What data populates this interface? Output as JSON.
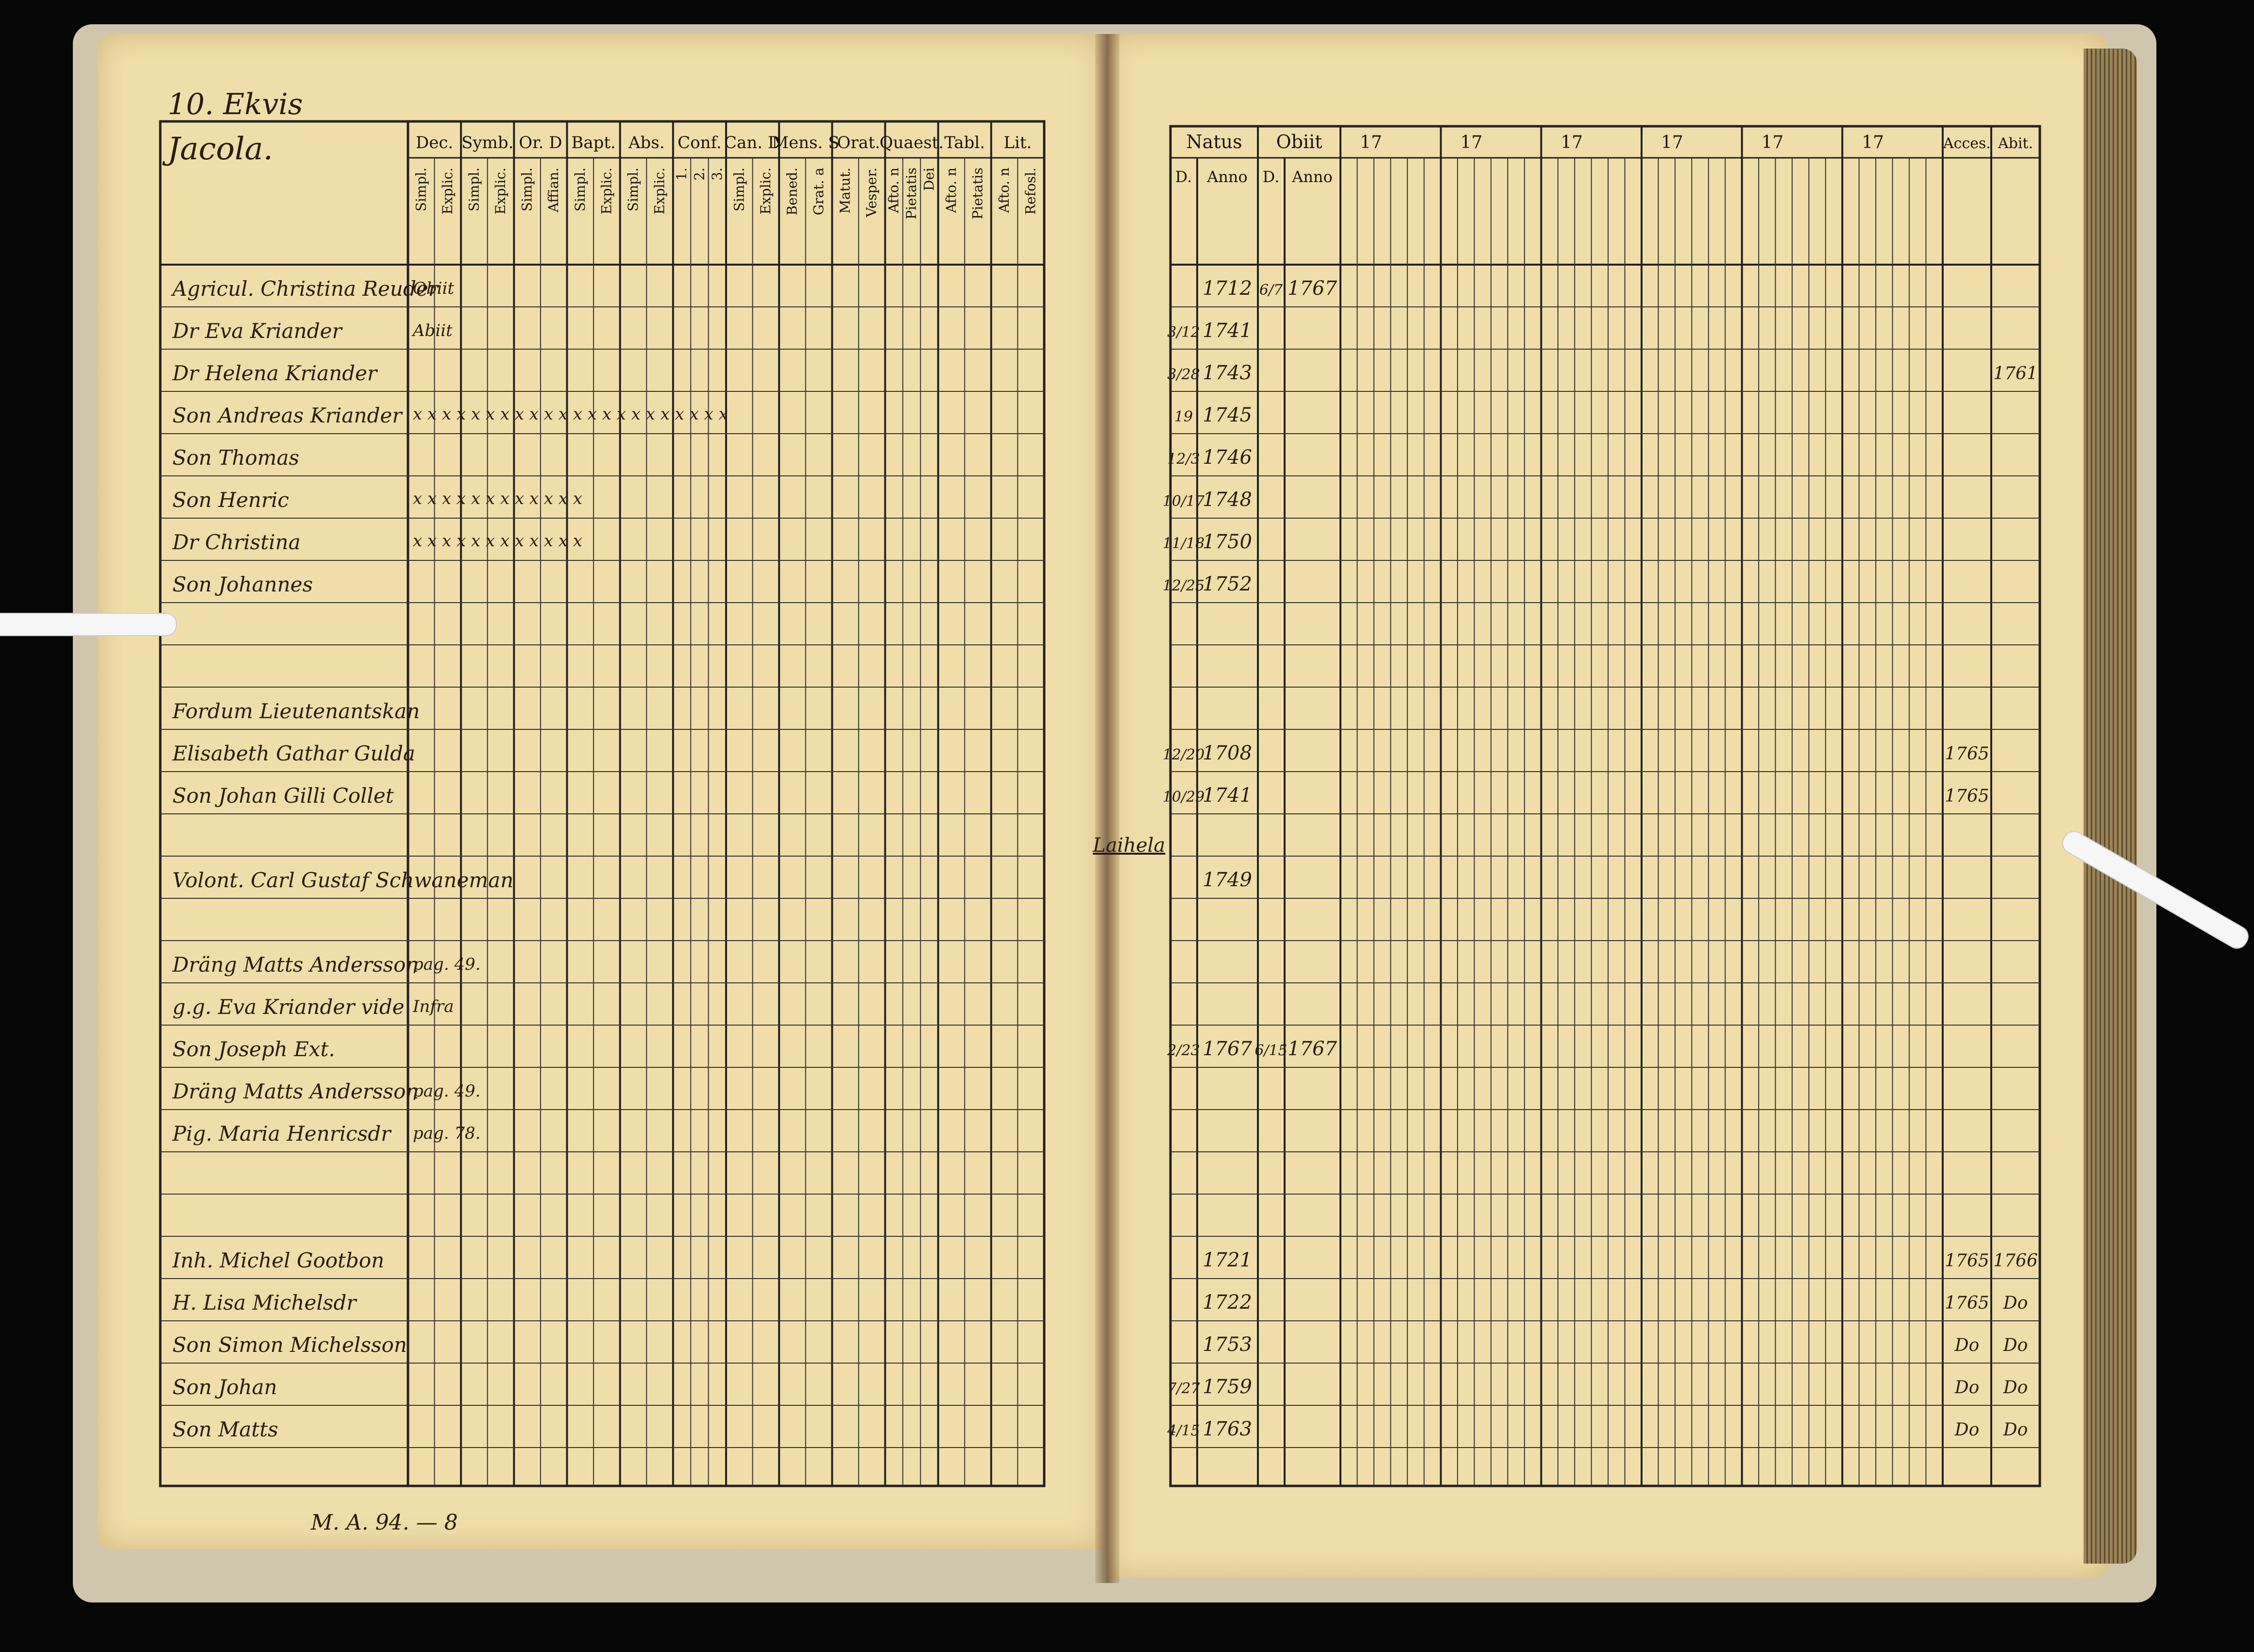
{
  "left_page": {
    "page_heading": "10. Ekvis",
    "farm_name": "Jacola.",
    "column_headers": [
      {
        "top": "Dec.",
        "subs": [
          "Simpl.",
          "Explic."
        ]
      },
      {
        "top": "Symb.",
        "subs": [
          "Simpl.",
          "Explic."
        ]
      },
      {
        "top": "Or. D",
        "subs": [
          "Simpl.",
          "Affian."
        ]
      },
      {
        "top": "Bapt.",
        "subs": [
          "Simpl.",
          "Explic."
        ]
      },
      {
        "top": "Abs.",
        "subs": [
          "Simpl.",
          "Explic."
        ]
      },
      {
        "top": "Conf.",
        "subs": [
          "1.",
          "2.",
          "3."
        ]
      },
      {
        "top": "Can. D",
        "subs": [
          "Simpl.",
          "Explic."
        ]
      },
      {
        "top": "Mens. S",
        "subs": [
          "Bened.",
          "Grat. a"
        ]
      },
      {
        "top": "Orat.",
        "subs": [
          "Matut.",
          "Vesper."
        ]
      },
      {
        "top": "Quaest.",
        "subs": [
          "Afto. n",
          "Pietatis",
          "Dei"
        ]
      },
      {
        "top": "Tabl.",
        "subs": [
          "Afto. n",
          "Pietatis"
        ]
      },
      {
        "top": "Lit.",
        "subs": [
          "Afto. n",
          "Refosl."
        ]
      }
    ],
    "names": [
      "Agricul. Christina Reuder",
      "Dr Eva Kriander",
      "Dr Helena Kriander",
      "Son Andreas Kriander",
      "Son Thomas",
      "Son Henric",
      "Dr Christina",
      "Son Johannes",
      "",
      "",
      "Fordum Lieutenantskan",
      "Elisabeth Gathar Gulda",
      "Son Johan Gilli Collet",
      "",
      "Volont. Carl Gustaf Schwaneman",
      "",
      "Dräng Matts Andersson",
      "g.g. Eva Kriander vide",
      "Son Joseph Ext.",
      "Dräng Matts Andersson",
      "Pig. Maria Henricsdr",
      "",
      "",
      "Inh. Michel Gootbon",
      "H. Lisa Michelsdr",
      "Son Simon Michelsson",
      "Son Johan",
      "Son Matts"
    ],
    "row_notes": {
      "row_0": "Obiit",
      "row_1": "Abiit",
      "row_16": "pag. 49.",
      "row_17": "Infra",
      "row_19": "pag. 49.",
      "row_20": "pag. 78."
    },
    "marks": {
      "row_3": "x x   x x x   x x   x x   x x   x x x   x x   x x   x x   x x",
      "row_5": "x x   x   x   x x           x   x x   x x   x",
      "row_6": "x x   x   x   x x           x   x x   x x   x"
    },
    "shelfmark": "M. A. 94. — 8"
  },
  "right_page": {
    "headers": {
      "natus": "Natus",
      "obiit": "Obiit",
      "year_cols": [
        "17",
        "17",
        "17",
        "17",
        "17",
        "17"
      ],
      "accessit": "Acces.",
      "abiit": "Abit.",
      "sub_d": "D.",
      "sub_anno": "Anno",
      "sub_d2": "D.",
      "sub_anno2": "Anno"
    },
    "rows": [
      {
        "row": 0,
        "natus_d": "",
        "natus_anno": "1712",
        "obiit_d": "6/7",
        "obiit_anno": "1767",
        "acces": "",
        "abit": ""
      },
      {
        "row": 1,
        "natus_d": "3/12",
        "natus_anno": "1741",
        "obiit_d": "",
        "obiit_anno": "",
        "acces": "",
        "abit": ""
      },
      {
        "row": 2,
        "natus_d": "3/28",
        "natus_anno": "1743",
        "obiit_d": "",
        "obiit_anno": "",
        "acces": "",
        "abit": "1761"
      },
      {
        "row": 3,
        "natus_d": "19",
        "natus_anno": "1745",
        "obiit_d": "",
        "obiit_anno": "",
        "acces": "",
        "abit": ""
      },
      {
        "row": 4,
        "natus_d": "12/3",
        "natus_anno": "1746",
        "obiit_d": "",
        "obiit_anno": "",
        "acces": "",
        "abit": ""
      },
      {
        "row": 5,
        "natus_d": "10/17",
        "natus_anno": "1748",
        "obiit_d": "",
        "obiit_anno": "",
        "acces": "",
        "abit": ""
      },
      {
        "row": 6,
        "natus_d": "11/18",
        "natus_anno": "1750",
        "obiit_d": "",
        "obiit_anno": "",
        "acces": "",
        "abit": ""
      },
      {
        "row": 7,
        "natus_d": "12/25",
        "natus_anno": "1752",
        "obiit_d": "",
        "obiit_anno": "",
        "acces": "",
        "abit": ""
      },
      {
        "row": 11,
        "natus_d": "12/20",
        "natus_anno": "1708",
        "obiit_d": "",
        "obiit_anno": "",
        "acces": "1765",
        "abit": ""
      },
      {
        "row": 12,
        "natus_d": "10/29",
        "natus_anno": "1741",
        "obiit_d": "",
        "obiit_anno": "",
        "acces": "1765",
        "abit": ""
      },
      {
        "row": 14,
        "natus_d": "",
        "natus_anno": "1749",
        "obiit_d": "",
        "obiit_anno": "",
        "acces": "",
        "abit": ""
      },
      {
        "row": 18,
        "natus_d": "2/23",
        "natus_anno": "1767",
        "obiit_d": "6/15",
        "obiit_anno": "1767",
        "acces": "",
        "abit": ""
      },
      {
        "row": 23,
        "natus_d": "",
        "natus_anno": "1721",
        "obiit_d": "",
        "obiit_anno": "",
        "acces": "1765",
        "abit": "1766"
      },
      {
        "row": 24,
        "natus_d": "",
        "natus_anno": "1722",
        "obiit_d": "",
        "obiit_anno": "",
        "acces": "1765",
        "abit": "Do"
      },
      {
        "row": 25,
        "natus_d": "",
        "natus_anno": "1753",
        "obiit_d": "",
        "obiit_anno": "",
        "acces": "Do",
        "abit": "Do"
      },
      {
        "row": 26,
        "natus_d": "7/27",
        "natus_anno": "1759",
        "obiit_d": "",
        "obiit_anno": "",
        "acces": "Do",
        "abit": "Do"
      },
      {
        "row": 27,
        "natus_d": "4/15",
        "natus_anno": "1763",
        "obiit_d": "",
        "obiit_anno": "",
        "acces": "Do",
        "abit": "Do"
      }
    ],
    "margin_note": "Laihela"
  }
}
